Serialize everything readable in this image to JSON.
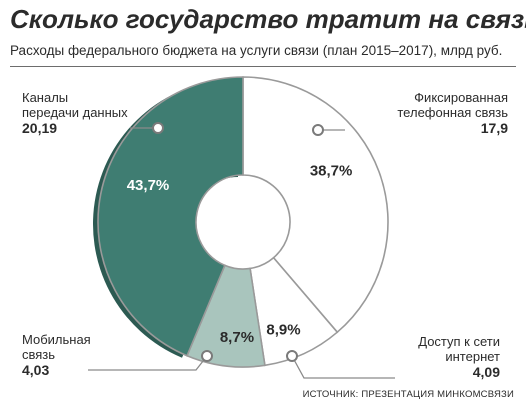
{
  "title": "Сколько государство тратит на связь",
  "subtitle": "Расходы федерального бюджета на услуги связи (план 2015–2017), млрд руб.",
  "source": "ИСТОЧНИК: ПРЕЗЕНТАЦИЯ МИНКОМСВЯЗИ",
  "chart_data": {
    "type": "pie",
    "donut": true,
    "slices": [
      {
        "label_lines": [
          "Фиксированная",
          "телефонная связь"
        ],
        "value": 17.9,
        "value_text": "17,9",
        "percent_text": "38,7%",
        "color": "#ffffff"
      },
      {
        "label_lines": [
          "Доступ к сети",
          "интернет"
        ],
        "value": 4.09,
        "value_text": "4,09",
        "percent_text": "8,9%",
        "color": "#ffffff"
      },
      {
        "label_lines": [
          "Мобильная",
          "связь"
        ],
        "value": 4.03,
        "value_text": "4,03",
        "percent_text": "8,7%",
        "color": "#a9c5bd"
      },
      {
        "label_lines": [
          "Каналы",
          "передачи данных"
        ],
        "value": 20.19,
        "value_text": "20,19",
        "percent_text": "43,7%",
        "color": "#3f7d72"
      }
    ]
  }
}
